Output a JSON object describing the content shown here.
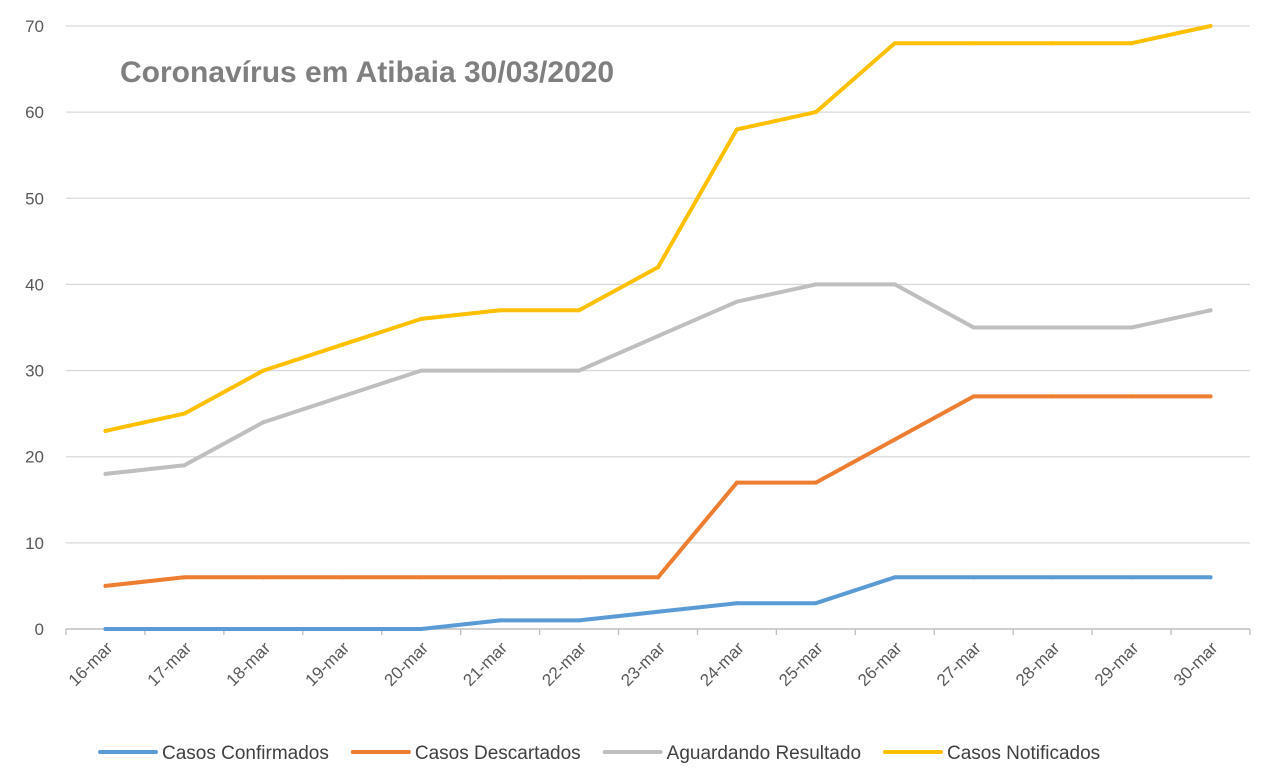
{
  "chart_data": {
    "type": "line",
    "title": "Coronavírus em Atibaia 30/03/2020",
    "xlabel": "",
    "ylabel": "",
    "ylim": [
      0,
      70
    ],
    "yticks": [
      0,
      10,
      20,
      30,
      40,
      50,
      60,
      70
    ],
    "grid": true,
    "legend_position": "bottom",
    "categories": [
      "16-mar",
      "17-mar",
      "18-mar",
      "19-mar",
      "20-mar",
      "21-mar",
      "22-mar",
      "23-mar",
      "24-mar",
      "25-mar",
      "26-mar",
      "27-mar",
      "28-mar",
      "29-mar",
      "30-mar"
    ],
    "series": [
      {
        "name": "Casos Confirmados",
        "color": "#5b9bd5",
        "values": [
          0,
          0,
          0,
          0,
          0,
          1,
          1,
          2,
          3,
          3,
          6,
          6,
          6,
          6,
          6
        ]
      },
      {
        "name": "Casos Descartados",
        "color": "#ed7d31",
        "values": [
          5,
          6,
          6,
          6,
          6,
          6,
          6,
          6,
          17,
          17,
          22,
          27,
          27,
          27,
          27
        ]
      },
      {
        "name": "Aguardando Resultado",
        "color": "#bfbfbf",
        "values": [
          18,
          19,
          24,
          27,
          30,
          30,
          30,
          34,
          38,
          40,
          40,
          35,
          35,
          35,
          37
        ]
      },
      {
        "name": "Casos Notificados",
        "color": "#ffc000",
        "values": [
          23,
          25,
          30,
          33,
          36,
          37,
          37,
          42,
          58,
          60,
          68,
          68,
          68,
          68,
          70
        ]
      }
    ]
  }
}
